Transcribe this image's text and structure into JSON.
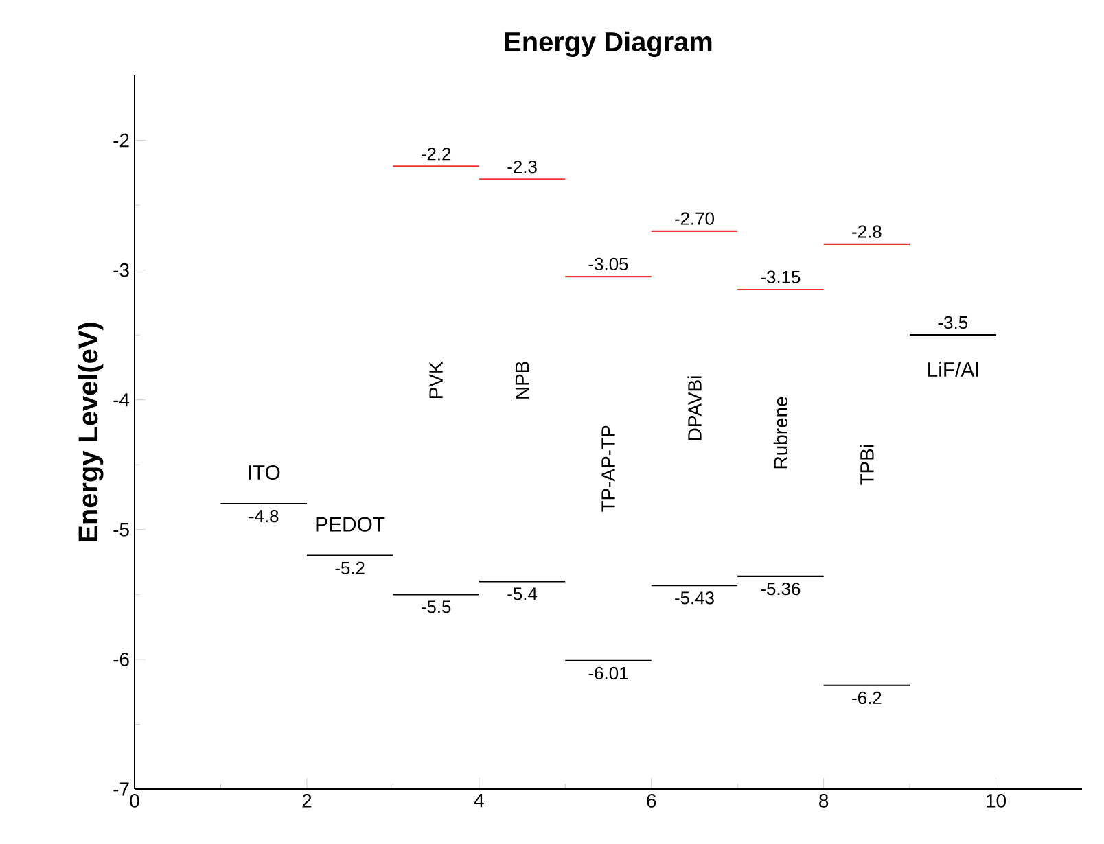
{
  "chart_data": {
    "type": "line",
    "title": "Energy Diagram",
    "ylabel": "Energy Level(eV)",
    "xlim": [
      0,
      11
    ],
    "ylim": [
      -7,
      -1.5
    ],
    "xticks": [
      0,
      2,
      4,
      6,
      8,
      10
    ],
    "yticks": [
      -7,
      -6,
      -5,
      -4,
      -3,
      -2
    ],
    "series": [
      {
        "color": "#000000",
        "x": [
          1,
          2
        ],
        "values": [
          -4.8,
          -4.8
        ],
        "value_labels": [
          "-4.8",
          null
        ]
      },
      {
        "color": "#000000",
        "x": [
          2,
          3
        ],
        "values": [
          -5.2,
          -5.2
        ],
        "value_labels": [
          "-5.2",
          null
        ]
      },
      {
        "color": "#ee3333",
        "x": [
          3,
          4
        ],
        "values": [
          -2.2,
          -2.2
        ],
        "value_labels": [
          "-2.2",
          null
        ]
      },
      {
        "color": "#000000",
        "x": [
          3,
          4
        ],
        "values": [
          -5.5,
          -5.5
        ],
        "value_labels": [
          "-5.5",
          null
        ]
      },
      {
        "color": "#ee3333",
        "x": [
          4,
          5
        ],
        "values": [
          -2.3,
          -2.3
        ],
        "value_labels": [
          "-2.3",
          null
        ]
      },
      {
        "color": "#000000",
        "x": [
          4,
          5
        ],
        "values": [
          -5.4,
          -5.4
        ],
        "value_labels": [
          "-5.4",
          null
        ]
      },
      {
        "color": "#ee3333",
        "x": [
          5,
          6
        ],
        "values": [
          -3.05,
          -3.05
        ],
        "value_labels": [
          "-3.05",
          null
        ]
      },
      {
        "color": "#000000",
        "x": [
          5,
          6
        ],
        "values": [
          -6.01,
          -6.01
        ],
        "value_labels": [
          "-6.01",
          null
        ]
      },
      {
        "color": "#ee3333",
        "x": [
          6,
          7
        ],
        "values": [
          -2.7,
          -2.7
        ],
        "value_labels": [
          "-2.70",
          null
        ]
      },
      {
        "color": "#000000",
        "x": [
          6,
          7
        ],
        "values": [
          -5.43,
          -5.43
        ],
        "value_labels": [
          "-5.43",
          null
        ]
      },
      {
        "color": "#ee3333",
        "x": [
          7,
          8
        ],
        "values": [
          -3.15,
          -3.15
        ],
        "value_labels": [
          "-3.15",
          null
        ]
      },
      {
        "color": "#000000",
        "x": [
          7,
          8
        ],
        "values": [
          -5.36,
          -5.36
        ],
        "value_labels": [
          "-5.36",
          null
        ]
      },
      {
        "color": "#ee3333",
        "x": [
          8,
          9
        ],
        "values": [
          -2.8,
          -2.8
        ],
        "value_labels": [
          "-2.8",
          null
        ]
      },
      {
        "color": "#000000",
        "x": [
          8,
          9
        ],
        "values": [
          -6.2,
          -6.2
        ],
        "value_labels": [
          "-6.2",
          null
        ]
      },
      {
        "color": "#000000",
        "x": [
          9,
          10
        ],
        "values": [
          -3.5,
          -3.5
        ],
        "value_labels": [
          "-3.5",
          null
        ]
      }
    ],
    "annotations": [
      "ITO",
      "PEDOT",
      "PVK",
      "NPB",
      "TP-AP-TP",
      "DPAVBi",
      "Rubrene",
      "TPBi",
      "LiF/Al"
    ]
  }
}
